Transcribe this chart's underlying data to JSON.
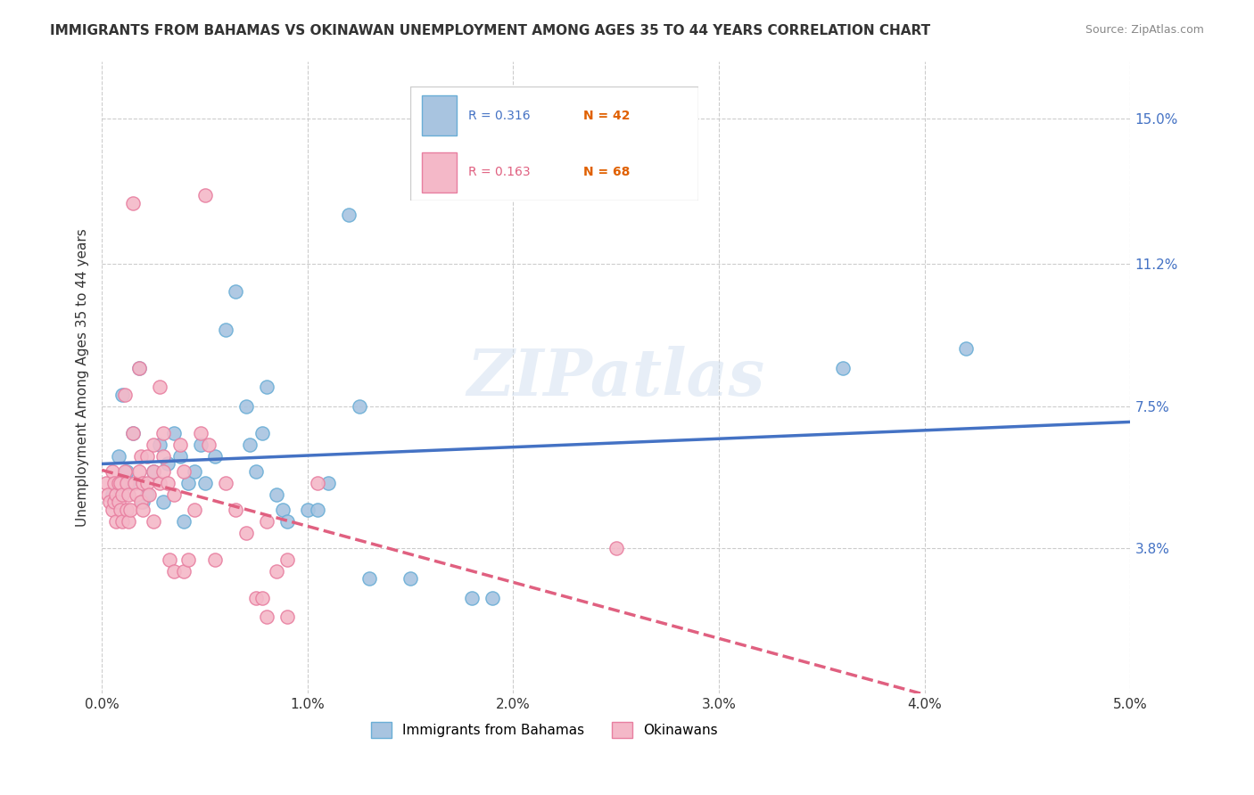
{
  "title": "IMMIGRANTS FROM BAHAMAS VS OKINAWAN UNEMPLOYMENT AMONG AGES 35 TO 44 YEARS CORRELATION CHART",
  "source": "Source: ZipAtlas.com",
  "ylabel": "Unemployment Among Ages 35 to 44 years",
  "right_yticks": [
    3.8,
    7.5,
    11.2,
    15.0
  ],
  "right_ytick_labels": [
    "3.8%",
    "7.5%",
    "11.2%",
    "15.0%"
  ],
  "xmin": 0.0,
  "xmax": 5.0,
  "ymin": 0.0,
  "ymax": 16.5,
  "blue_R": "0.316",
  "blue_N": "42",
  "pink_R": "0.163",
  "pink_N": "68",
  "blue_color": "#a8c4e0",
  "blue_edge": "#6aaed6",
  "pink_color": "#f4b8c8",
  "pink_edge": "#e87fa0",
  "blue_line_color": "#4472c4",
  "pink_line_color": "#e06080",
  "watermark": "ZIPatlas",
  "legend_label_blue": "Immigrants from Bahamas",
  "legend_label_pink": "Okinawans",
  "blue_points": [
    [
      0.05,
      5.2
    ],
    [
      0.08,
      6.2
    ],
    [
      0.1,
      7.8
    ],
    [
      0.12,
      5.8
    ],
    [
      0.13,
      5.5
    ],
    [
      0.15,
      6.8
    ],
    [
      0.18,
      8.5
    ],
    [
      0.2,
      5.0
    ],
    [
      0.22,
      5.2
    ],
    [
      0.25,
      5.8
    ],
    [
      0.28,
      6.5
    ],
    [
      0.3,
      5.0
    ],
    [
      0.32,
      6.0
    ],
    [
      0.35,
      6.8
    ],
    [
      0.38,
      6.2
    ],
    [
      0.4,
      4.5
    ],
    [
      0.42,
      5.5
    ],
    [
      0.45,
      5.8
    ],
    [
      0.48,
      6.5
    ],
    [
      0.5,
      5.5
    ],
    [
      0.55,
      6.2
    ],
    [
      0.6,
      9.5
    ],
    [
      0.65,
      10.5
    ],
    [
      0.7,
      7.5
    ],
    [
      0.72,
      6.5
    ],
    [
      0.75,
      5.8
    ],
    [
      0.78,
      6.8
    ],
    [
      0.8,
      8.0
    ],
    [
      0.85,
      5.2
    ],
    [
      0.88,
      4.8
    ],
    [
      0.9,
      4.5
    ],
    [
      1.0,
      4.8
    ],
    [
      1.05,
      4.8
    ],
    [
      1.1,
      5.5
    ],
    [
      1.2,
      12.5
    ],
    [
      1.25,
      7.5
    ],
    [
      1.3,
      3.0
    ],
    [
      1.5,
      3.0
    ],
    [
      1.8,
      2.5
    ],
    [
      1.9,
      2.5
    ],
    [
      3.6,
      8.5
    ],
    [
      4.2,
      9.0
    ]
  ],
  "pink_points": [
    [
      0.02,
      5.5
    ],
    [
      0.03,
      5.2
    ],
    [
      0.04,
      5.0
    ],
    [
      0.05,
      5.8
    ],
    [
      0.05,
      4.8
    ],
    [
      0.06,
      5.5
    ],
    [
      0.06,
      5.0
    ],
    [
      0.07,
      5.2
    ],
    [
      0.07,
      4.5
    ],
    [
      0.08,
      5.5
    ],
    [
      0.08,
      5.0
    ],
    [
      0.09,
      5.5
    ],
    [
      0.09,
      4.8
    ],
    [
      0.1,
      5.2
    ],
    [
      0.1,
      4.5
    ],
    [
      0.11,
      7.8
    ],
    [
      0.11,
      5.8
    ],
    [
      0.12,
      5.5
    ],
    [
      0.12,
      4.8
    ],
    [
      0.13,
      5.2
    ],
    [
      0.13,
      4.5
    ],
    [
      0.14,
      4.8
    ],
    [
      0.15,
      12.8
    ],
    [
      0.15,
      6.8
    ],
    [
      0.16,
      5.5
    ],
    [
      0.17,
      5.2
    ],
    [
      0.18,
      8.5
    ],
    [
      0.18,
      5.8
    ],
    [
      0.19,
      6.2
    ],
    [
      0.19,
      5.0
    ],
    [
      0.2,
      5.5
    ],
    [
      0.2,
      4.8
    ],
    [
      0.22,
      6.2
    ],
    [
      0.22,
      5.5
    ],
    [
      0.23,
      5.2
    ],
    [
      0.25,
      6.5
    ],
    [
      0.25,
      5.8
    ],
    [
      0.25,
      4.5
    ],
    [
      0.28,
      8.0
    ],
    [
      0.28,
      5.5
    ],
    [
      0.3,
      6.8
    ],
    [
      0.3,
      6.2
    ],
    [
      0.3,
      5.8
    ],
    [
      0.32,
      5.5
    ],
    [
      0.33,
      3.5
    ],
    [
      0.35,
      5.2
    ],
    [
      0.35,
      3.2
    ],
    [
      0.38,
      6.5
    ],
    [
      0.4,
      5.8
    ],
    [
      0.4,
      3.2
    ],
    [
      0.42,
      3.5
    ],
    [
      0.45,
      4.8
    ],
    [
      0.48,
      6.8
    ],
    [
      0.5,
      13.0
    ],
    [
      0.52,
      6.5
    ],
    [
      0.55,
      3.5
    ],
    [
      0.6,
      5.5
    ],
    [
      0.65,
      4.8
    ],
    [
      0.7,
      4.2
    ],
    [
      0.75,
      2.5
    ],
    [
      0.78,
      2.5
    ],
    [
      0.8,
      4.5
    ],
    [
      0.8,
      2.0
    ],
    [
      0.85,
      3.2
    ],
    [
      0.9,
      3.5
    ],
    [
      0.9,
      2.0
    ],
    [
      1.05,
      5.5
    ],
    [
      2.5,
      3.8
    ]
  ]
}
